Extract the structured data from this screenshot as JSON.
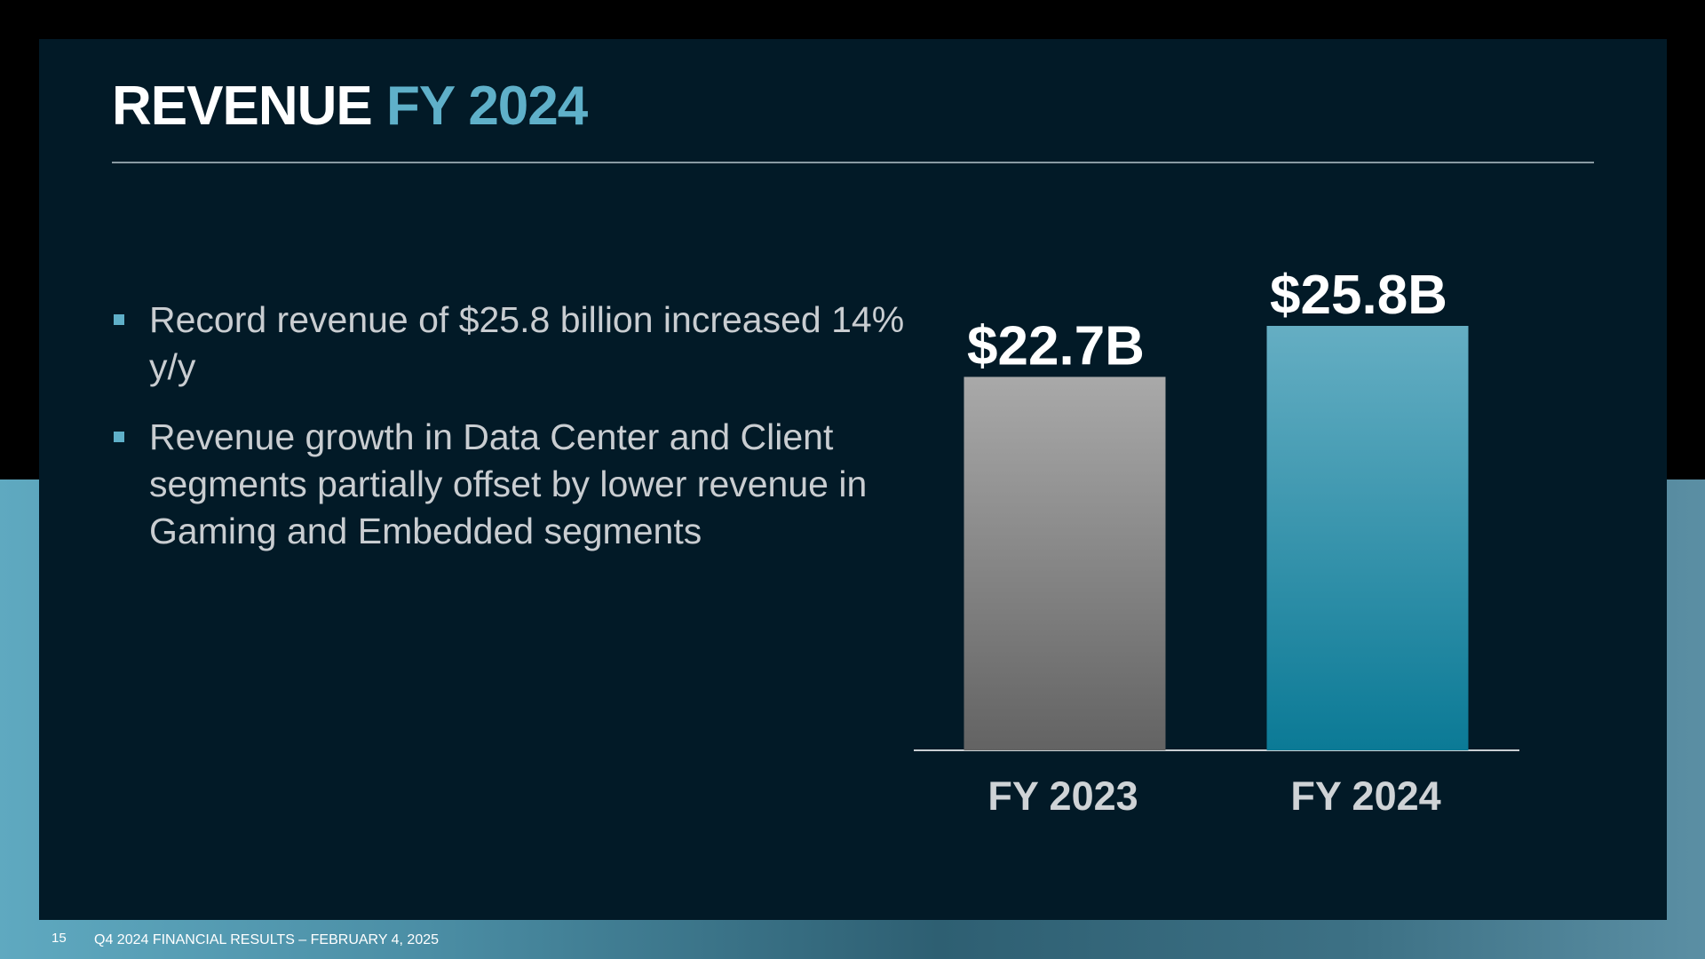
{
  "slide": {
    "title_main": "REVENUE",
    "title_accent": "FY 2024",
    "bullets": [
      "Record revenue of $25.8 billion increased 14% y/y",
      "Revenue growth in Data Center and Client segments partially offset by lower revenue in Gaming and Embedded segments"
    ],
    "page_number": "15",
    "footer": "Q4 2024 FINANCIAL RESULTS – FEBRUARY 4, 2025"
  },
  "chart_data": {
    "type": "bar",
    "categories": [
      "FY 2023",
      "FY 2024"
    ],
    "values": [
      22.7,
      25.8
    ],
    "data_labels": [
      "$22.7B",
      "$25.8B"
    ],
    "bar_colors": [
      "#8a8a8a",
      "#3f97b0"
    ],
    "title": "",
    "xlabel": "",
    "ylabel": "",
    "ylim": [
      0,
      25.8
    ],
    "grid": false
  },
  "colors": {
    "accent": "#5fb0c9",
    "slide_background": "#021a27"
  }
}
